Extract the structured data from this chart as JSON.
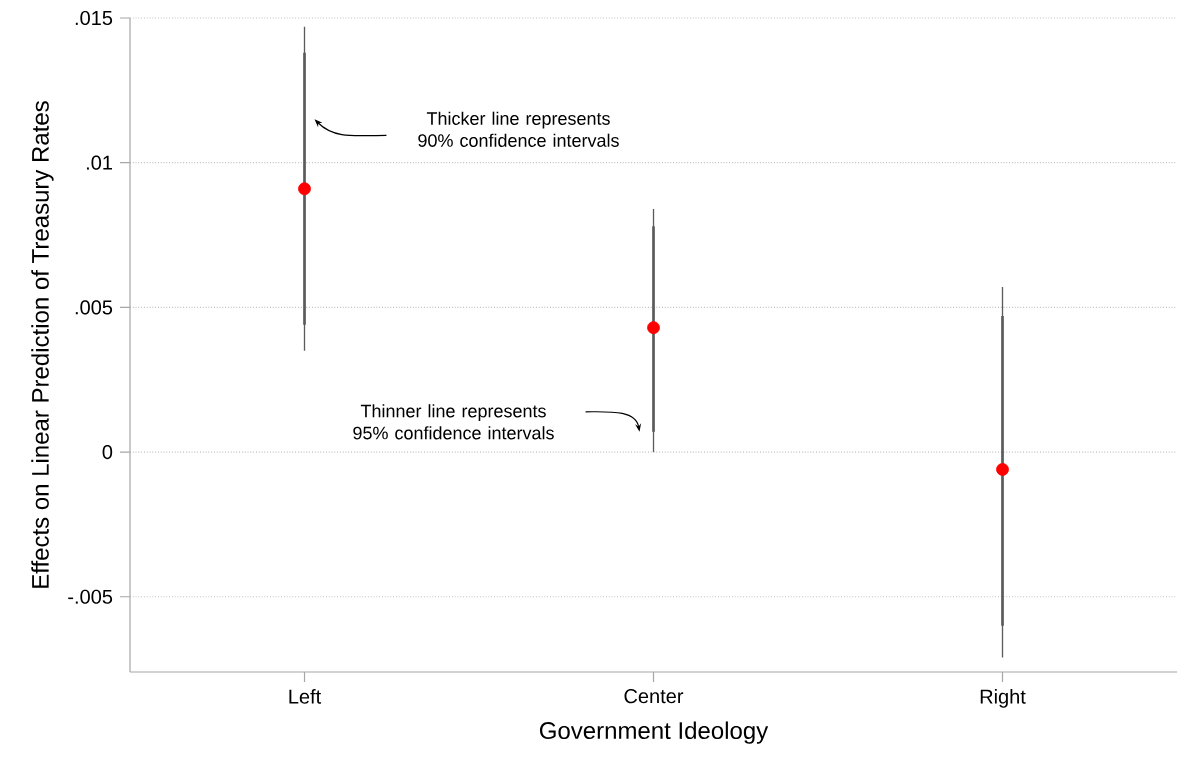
{
  "chart_data": {
    "type": "scatter",
    "xlabel": "Government Ideology",
    "ylabel": "Effects on Linear Prediction of Treasury Rates",
    "categories": [
      "Left",
      "Center",
      "Right"
    ],
    "series": [
      {
        "type": "bar",
        "color": "#5b5b5b",
        "base": [
          0.0035,
          0.0,
          -0.0071
        ],
        "values": [
          0.0112,
          0.0084,
          0.0128
        ]
      },
      {
        "type": "bar",
        "color": "#5b5b5b",
        "base": [
          0.0044,
          0.0007,
          -0.006
        ],
        "values": [
          0.0094,
          0.0071,
          0.0107
        ]
      },
      {
        "color": "#ff0000",
        "marker": "circle",
        "values": [
          0.0091,
          0.0043,
          -0.0006
        ]
      }
    ],
    "ylim": [
      -0.0076,
      0.015
    ],
    "yticks": [
      {
        "value": -0.005,
        "label": "-.005"
      },
      {
        "value": 0,
        "label": "0"
      },
      {
        "value": 0.005,
        "label": ".005"
      },
      {
        "value": 0.01,
        "label": ".01"
      },
      {
        "value": 0.015,
        "label": ".015"
      }
    ],
    "grid": "y",
    "annotations": [
      "Thicker line represents 90% confidence intervals",
      "Thinner line represents 95% confidence intervals"
    ]
  }
}
